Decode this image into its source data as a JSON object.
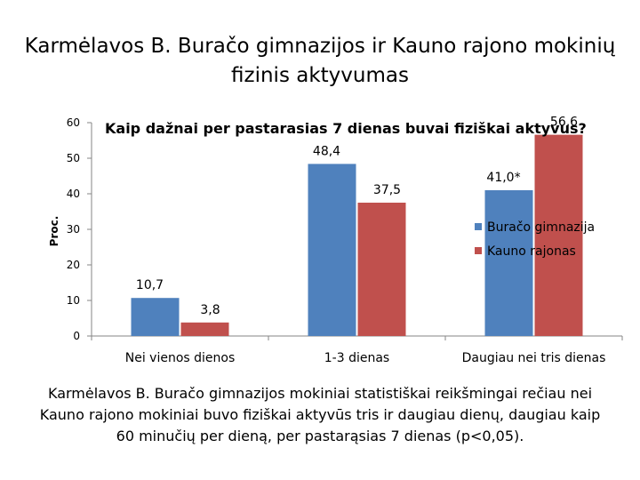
{
  "title": "Karmėlavos B. Buračo gimnazijos ir Kauno rajono mokinių fizinis aktyvumas",
  "footer_text": "Karmėlavos B. Buračo gimnazijos mokiniai statistiškai reikšmingai rečiau nei Kauno rajono mokiniai buvo fiziškai aktyvūs tris ir daugiau dienų, daugiau kaip 60 minučių per dieną, per pastarąsias 7 dienas (p<0,05).",
  "chart_data": {
    "type": "bar",
    "title": "Kaip dažnai per pastarasias 7 dienas buvai fiziškai aktyvus?",
    "ylabel": "Proc.",
    "xlabel": "",
    "ylim": [
      0,
      60
    ],
    "yticks": [
      0,
      10,
      20,
      30,
      40,
      50,
      60
    ],
    "categories": [
      "Nei vienos dienos",
      "1-3 dienas",
      "Daugiau nei tris dienas"
    ],
    "series": [
      {
        "name": "Buračo gimnazija",
        "color": "#4f81bd",
        "values": [
          10.7,
          48.4,
          41.0
        ],
        "labels": [
          "10,7",
          "48,4",
          "41,0*"
        ]
      },
      {
        "name": "Kauno rajonas",
        "color": "#c0504d",
        "values": [
          3.8,
          37.5,
          56.6
        ],
        "labels": [
          "3,8",
          "37,5",
          "56,6"
        ]
      }
    ],
    "legend_position": "right",
    "grid": false
  }
}
